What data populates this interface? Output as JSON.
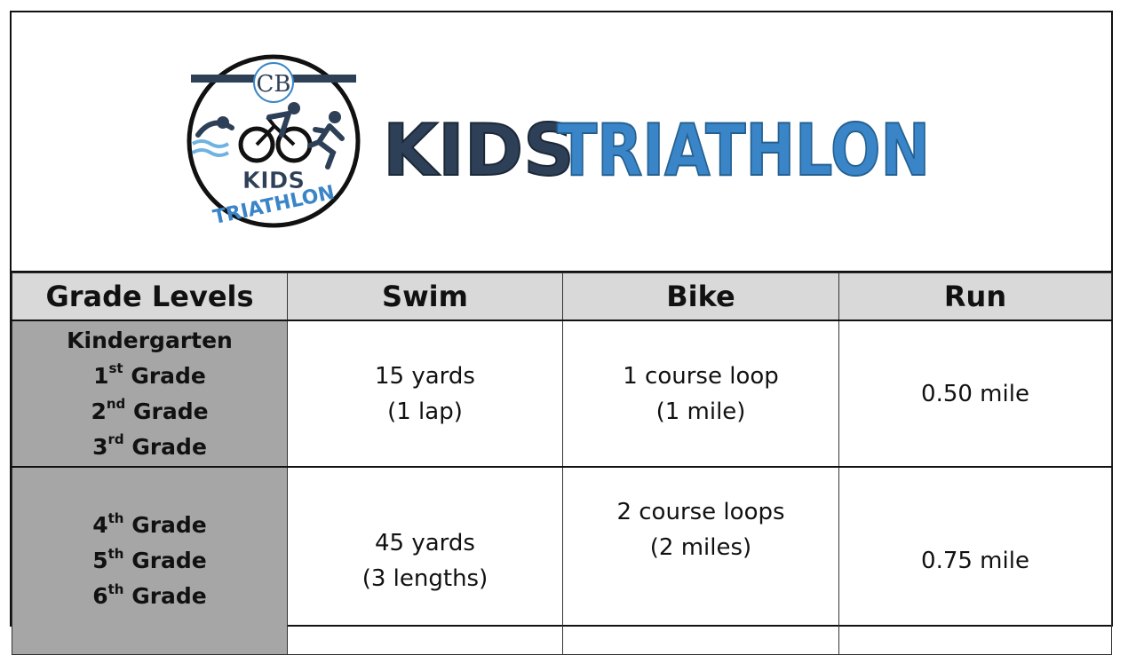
{
  "logo": {
    "badge_letter": "CB",
    "badge_text_top": "KIDS",
    "badge_text_bottom": "TRIATHLON",
    "icon_names": [
      "swimmer-icon",
      "cyclist-icon",
      "runner-icon"
    ]
  },
  "banner": {
    "word1": "KIDS",
    "word2": "TRIATHLON",
    "colors": {
      "dark": "#2e4057",
      "blue": "#3a85c8"
    }
  },
  "table": {
    "headers": [
      "Grade Levels",
      "Swim",
      "Bike",
      "Run"
    ],
    "rows": [
      {
        "grades": [
          {
            "base": "Kindergarten",
            "sup": "",
            "rest": ""
          },
          {
            "base": "1",
            "sup": "st",
            "rest": " Grade"
          },
          {
            "base": "2",
            "sup": "nd",
            "rest": " Grade"
          },
          {
            "base": "3",
            "sup": "rd",
            "rest": " Grade"
          }
        ],
        "swim": [
          "15 yards",
          "(1 lap)"
        ],
        "bike": [
          "1 course loop",
          "(1 mile)"
        ],
        "run": "0.50 mile"
      },
      {
        "grades": [
          {
            "base": "4",
            "sup": "th",
            "rest": " Grade"
          },
          {
            "base": "5",
            "sup": "th",
            "rest": " Grade"
          },
          {
            "base": "6",
            "sup": "th",
            "rest": " Grade"
          }
        ],
        "swim": [
          "45 yards",
          "(3 lengths)"
        ],
        "bike": [
          "2 course loops",
          "(2 miles)"
        ],
        "run": "0.75 mile"
      }
    ],
    "colors": {
      "header_bg": "#d9d9d9",
      "grade_bg": "#a6a6a6"
    }
  }
}
